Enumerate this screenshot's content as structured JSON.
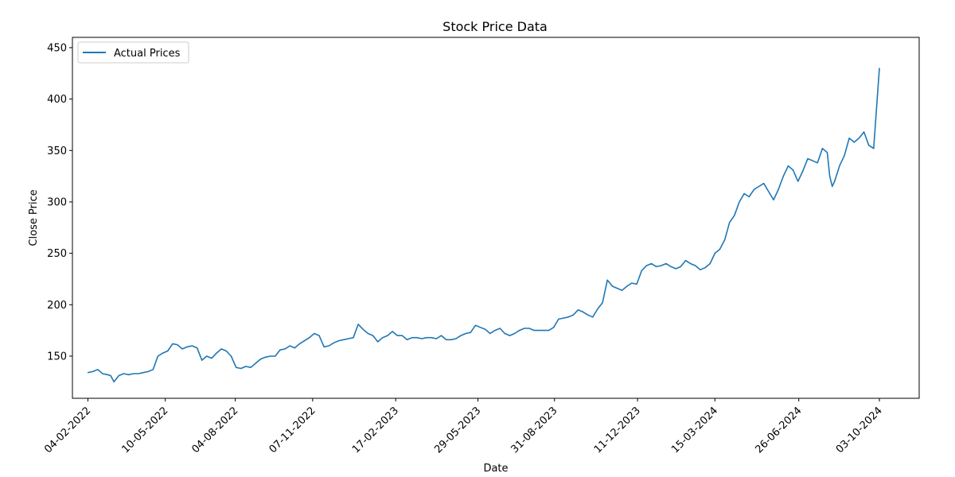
{
  "chart_data": {
    "type": "line",
    "title": "Stock Price Data",
    "xlabel": "Date",
    "ylabel": "Close Price",
    "x_ticks": [
      "04-02-2022",
      "10-05-2022",
      "04-08-2022",
      "07-11-2022",
      "17-02-2023",
      "29-05-2023",
      "31-08-2023",
      "11-12-2023",
      "15-03-2024",
      "26-06-2024",
      "03-10-2024"
    ],
    "x_tick_dates": [
      "2022-02-04",
      "2022-05-10",
      "2022-08-04",
      "2022-11-07",
      "2023-02-17",
      "2023-05-29",
      "2023-08-31",
      "2023-12-11",
      "2024-03-15",
      "2024-06-26",
      "2024-10-03"
    ],
    "xlim": [
      "2022-01-16",
      "2024-10-03"
    ],
    "yticks": [
      150,
      200,
      250,
      300,
      350,
      400,
      450
    ],
    "ylim": [
      109,
      460
    ],
    "grid": false,
    "legend": {
      "placement": "top-left",
      "entries": [
        "Actual Prices"
      ]
    },
    "series": [
      {
        "name": "Actual Prices",
        "color": "#1f77b4",
        "points": [
          [
            "2022-02-04",
            134
          ],
          [
            "2022-02-10",
            135
          ],
          [
            "2022-02-16",
            137
          ],
          [
            "2022-02-22",
            133
          ],
          [
            "2022-02-28",
            132
          ],
          [
            "2022-03-04",
            131
          ],
          [
            "2022-03-08",
            125
          ],
          [
            "2022-03-14",
            131
          ],
          [
            "2022-03-20",
            133
          ],
          [
            "2022-03-26",
            132
          ],
          [
            "2022-04-01",
            133
          ],
          [
            "2022-04-07",
            133
          ],
          [
            "2022-04-13",
            134
          ],
          [
            "2022-04-19",
            135
          ],
          [
            "2022-04-25",
            137
          ],
          [
            "2022-05-01",
            150
          ],
          [
            "2022-05-07",
            153
          ],
          [
            "2022-05-13",
            155
          ],
          [
            "2022-05-19",
            162
          ],
          [
            "2022-05-25",
            161
          ],
          [
            "2022-05-31",
            157
          ],
          [
            "2022-06-06",
            159
          ],
          [
            "2022-06-12",
            160
          ],
          [
            "2022-06-18",
            158
          ],
          [
            "2022-06-24",
            146
          ],
          [
            "2022-06-30",
            150
          ],
          [
            "2022-07-06",
            148
          ],
          [
            "2022-07-12",
            153
          ],
          [
            "2022-07-18",
            157
          ],
          [
            "2022-07-24",
            155
          ],
          [
            "2022-07-30",
            150
          ],
          [
            "2022-08-05",
            139
          ],
          [
            "2022-08-11",
            138
          ],
          [
            "2022-08-17",
            140
          ],
          [
            "2022-08-23",
            139
          ],
          [
            "2022-08-29",
            143
          ],
          [
            "2022-09-04",
            147
          ],
          [
            "2022-09-10",
            149
          ],
          [
            "2022-09-16",
            150
          ],
          [
            "2022-09-22",
            150
          ],
          [
            "2022-09-28",
            156
          ],
          [
            "2022-10-04",
            157
          ],
          [
            "2022-10-10",
            160
          ],
          [
            "2022-10-16",
            158
          ],
          [
            "2022-10-22",
            162
          ],
          [
            "2022-10-28",
            165
          ],
          [
            "2022-11-03",
            168
          ],
          [
            "2022-11-09",
            172
          ],
          [
            "2022-11-15",
            170
          ],
          [
            "2022-11-21",
            159
          ],
          [
            "2022-11-27",
            160
          ],
          [
            "2022-12-03",
            163
          ],
          [
            "2022-12-09",
            165
          ],
          [
            "2022-12-15",
            166
          ],
          [
            "2022-12-21",
            167
          ],
          [
            "2022-12-27",
            168
          ],
          [
            "2023-01-02",
            181
          ],
          [
            "2023-01-08",
            176
          ],
          [
            "2023-01-14",
            172
          ],
          [
            "2023-01-20",
            170
          ],
          [
            "2023-01-26",
            164
          ],
          [
            "2023-02-01",
            168
          ],
          [
            "2023-02-07",
            170
          ],
          [
            "2023-02-13",
            174
          ],
          [
            "2023-02-19",
            170
          ],
          [
            "2023-02-25",
            170
          ],
          [
            "2023-03-03",
            166
          ],
          [
            "2023-03-09",
            168
          ],
          [
            "2023-03-15",
            168
          ],
          [
            "2023-03-21",
            167
          ],
          [
            "2023-03-27",
            168
          ],
          [
            "2023-04-02",
            168
          ],
          [
            "2023-04-08",
            167
          ],
          [
            "2023-04-14",
            170
          ],
          [
            "2023-04-20",
            166
          ],
          [
            "2023-04-26",
            166
          ],
          [
            "2023-05-02",
            167
          ],
          [
            "2023-05-08",
            170
          ],
          [
            "2023-05-14",
            172
          ],
          [
            "2023-05-20",
            173
          ],
          [
            "2023-05-26",
            180
          ],
          [
            "2023-06-01",
            178
          ],
          [
            "2023-06-07",
            176
          ],
          [
            "2023-06-13",
            172
          ],
          [
            "2023-06-19",
            175
          ],
          [
            "2023-06-25",
            177
          ],
          [
            "2023-07-01",
            172
          ],
          [
            "2023-07-07",
            170
          ],
          [
            "2023-07-13",
            172
          ],
          [
            "2023-07-19",
            175
          ],
          [
            "2023-07-25",
            177
          ],
          [
            "2023-07-31",
            177
          ],
          [
            "2023-08-06",
            175
          ],
          [
            "2023-08-12",
            175
          ],
          [
            "2023-08-18",
            175
          ],
          [
            "2023-08-24",
            175
          ],
          [
            "2023-08-30",
            178
          ],
          [
            "2023-09-05",
            186
          ],
          [
            "2023-09-11",
            187
          ],
          [
            "2023-09-17",
            188
          ],
          [
            "2023-09-23",
            190
          ],
          [
            "2023-09-29",
            195
          ],
          [
            "2023-10-05",
            193
          ],
          [
            "2023-10-11",
            190
          ],
          [
            "2023-10-17",
            188
          ],
          [
            "2023-10-23",
            196
          ],
          [
            "2023-10-29",
            202
          ],
          [
            "2023-11-04",
            224
          ],
          [
            "2023-11-10",
            218
          ],
          [
            "2023-11-16",
            216
          ],
          [
            "2023-11-22",
            214
          ],
          [
            "2023-11-28",
            218
          ],
          [
            "2023-12-04",
            221
          ],
          [
            "2023-12-10",
            220
          ],
          [
            "2023-12-16",
            233
          ],
          [
            "2023-12-22",
            238
          ],
          [
            "2023-12-28",
            240
          ],
          [
            "2024-01-03",
            237
          ],
          [
            "2024-01-09",
            238
          ],
          [
            "2024-01-15",
            240
          ],
          [
            "2024-01-21",
            237
          ],
          [
            "2024-01-27",
            235
          ],
          [
            "2024-02-02",
            237
          ],
          [
            "2024-02-08",
            243
          ],
          [
            "2024-02-14",
            240
          ],
          [
            "2024-02-20",
            238
          ],
          [
            "2024-02-26",
            234
          ],
          [
            "2024-03-03",
            236
          ],
          [
            "2024-03-09",
            240
          ],
          [
            "2024-03-15",
            250
          ],
          [
            "2024-03-21",
            254
          ],
          [
            "2024-03-27",
            263
          ],
          [
            "2024-04-02",
            280
          ],
          [
            "2024-04-08",
            287
          ],
          [
            "2024-04-14",
            300
          ],
          [
            "2024-04-20",
            308
          ],
          [
            "2024-04-26",
            305
          ],
          [
            "2024-05-02",
            312
          ],
          [
            "2024-05-08",
            315
          ],
          [
            "2024-05-14",
            318
          ],
          [
            "2024-05-20",
            310
          ],
          [
            "2024-05-26",
            302
          ],
          [
            "2024-06-01",
            312
          ],
          [
            "2024-06-07",
            325
          ],
          [
            "2024-06-13",
            335
          ],
          [
            "2024-06-19",
            331
          ],
          [
            "2024-06-25",
            320
          ],
          [
            "2024-07-01",
            330
          ],
          [
            "2024-07-07",
            342
          ],
          [
            "2024-07-13",
            340
          ],
          [
            "2024-07-19",
            338
          ],
          [
            "2024-07-25",
            352
          ],
          [
            "2024-07-31",
            348
          ],
          [
            "2024-08-03",
            325
          ],
          [
            "2024-08-06",
            315
          ],
          [
            "2024-08-09",
            320
          ],
          [
            "2024-08-15",
            335
          ],
          [
            "2024-08-21",
            345
          ],
          [
            "2024-08-27",
            362
          ],
          [
            "2024-09-02",
            358
          ],
          [
            "2024-09-08",
            362
          ],
          [
            "2024-09-14",
            368
          ],
          [
            "2024-09-20",
            355
          ],
          [
            "2024-09-26",
            352
          ],
          [
            "2024-10-03",
            430
          ]
        ]
      }
    ]
  }
}
